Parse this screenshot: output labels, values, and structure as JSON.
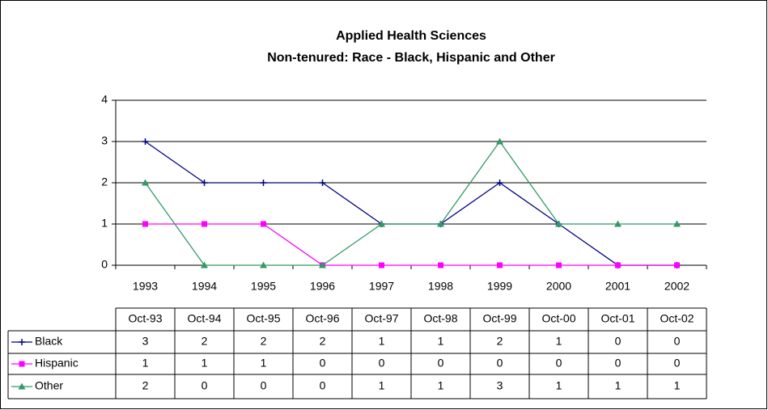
{
  "chart_data": {
    "type": "line",
    "title": [
      "Applied Health Sciences",
      "Non-tenured: Race - Black, Hispanic and Other"
    ],
    "categories": [
      "1993",
      "1994",
      "1995",
      "1996",
      "1997",
      "1998",
      "1999",
      "2000",
      "2001",
      "2002"
    ],
    "table_headers": [
      "Oct-93",
      "Oct-94",
      "Oct-95",
      "Oct-96",
      "Oct-97",
      "Oct-98",
      "Oct-99",
      "Oct-00",
      "Oct-01",
      "Oct-02"
    ],
    "series": [
      {
        "name": "Black",
        "color": "#000080",
        "marker": "plus",
        "values": [
          3,
          2,
          2,
          2,
          1,
          1,
          2,
          1,
          0,
          0
        ]
      },
      {
        "name": "Hispanic",
        "color": "#ff00ff",
        "marker": "square",
        "values": [
          1,
          1,
          1,
          0,
          0,
          0,
          0,
          0,
          0,
          0
        ]
      },
      {
        "name": "Other",
        "color": "#339966",
        "marker": "triangle",
        "values": [
          2,
          0,
          0,
          0,
          1,
          1,
          3,
          1,
          1,
          1
        ]
      }
    ],
    "ylim": [
      0,
      4
    ],
    "yticks": [
      0,
      1,
      2,
      3,
      4
    ],
    "grid": true
  }
}
